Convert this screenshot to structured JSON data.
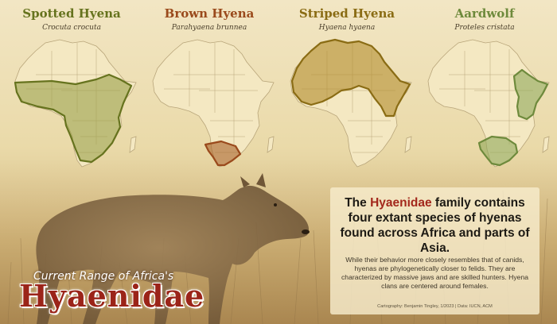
{
  "title": {
    "subtitle": "Current Range of Africa's",
    "main": "Hyaenidae"
  },
  "species": [
    {
      "common_name": "Spotted Hyena",
      "scientific_name": "Crocuta crocuta",
      "color": "#66731e",
      "range_fill": "#9aa04a"
    },
    {
      "common_name": "Brown Hyena",
      "scientific_name": "Parahyaena brunnea",
      "color": "#9a4a1c",
      "range_fill": "#a8622a"
    },
    {
      "common_name": "Striped Hyena",
      "scientific_name": "Hyaena hyaena",
      "color": "#8a6c14",
      "range_fill": "#b08a2a"
    },
    {
      "common_name": "Aardwolf",
      "scientific_name": "Proteles cristata",
      "color": "#6e8a3c",
      "range_fill": "#8fa85a"
    }
  ],
  "info": {
    "headline_prefix": "The ",
    "headline_highlight": "Hyaenidae",
    "headline_rest": " family contains four extant species of hyenas found across Africa and parts of Asia.",
    "body": "While their behavior more closely resembles that of canids, hyenas are phylogenetically closer to felids. They are characterized by massive jaws and are skilled hunters. Hyena clans are centered around females.",
    "credit": "Cartography: Benjamin Tingley, 1/2023 | Data: IUCN, ACM"
  },
  "colors": {
    "land": "#f4e8c2",
    "border": "#b8a57a",
    "highlight_text": "#a3281c",
    "title_red": "#9b2419"
  }
}
